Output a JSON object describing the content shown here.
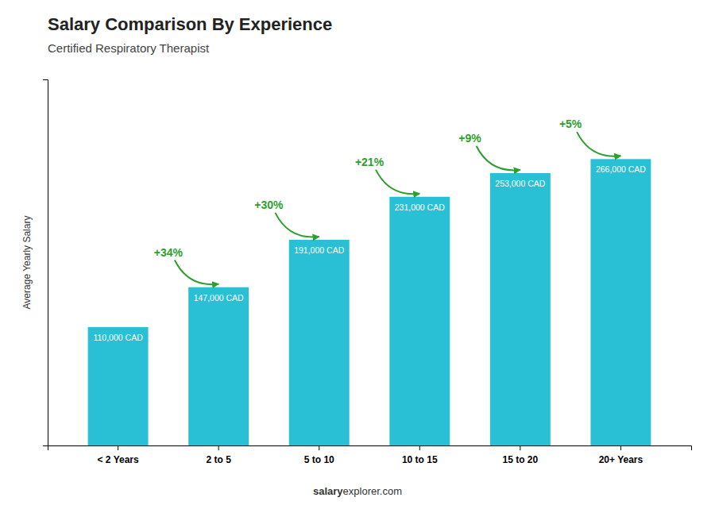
{
  "chart_data": {
    "type": "bar",
    "title": "Salary Comparison By Experience",
    "subtitle": "Certified Respiratory Therapist",
    "categories": [
      "< 2 Years",
      "2 to 5",
      "5 to 10",
      "10 to 15",
      "15 to 20",
      "20+ Years"
    ],
    "values": [
      110000,
      147000,
      191000,
      231000,
      253000,
      266000
    ],
    "value_labels": [
      "110,000 CAD",
      "147,000 CAD",
      "191,000 CAD",
      "231,000 CAD",
      "253,000 CAD",
      "266,000 CAD"
    ],
    "data_labels": true,
    "color": "#29bfd4",
    "ylabel": "Average Yearly Salary",
    "annotations": [
      "+34%",
      "+30%",
      "+21%",
      "+9%",
      "+5%"
    ],
    "footer": [
      "salary",
      "explorer.com"
    ],
    "ylim": [
      0,
      340000
    ],
    "tick_labels": "x",
    "grid": false
  }
}
